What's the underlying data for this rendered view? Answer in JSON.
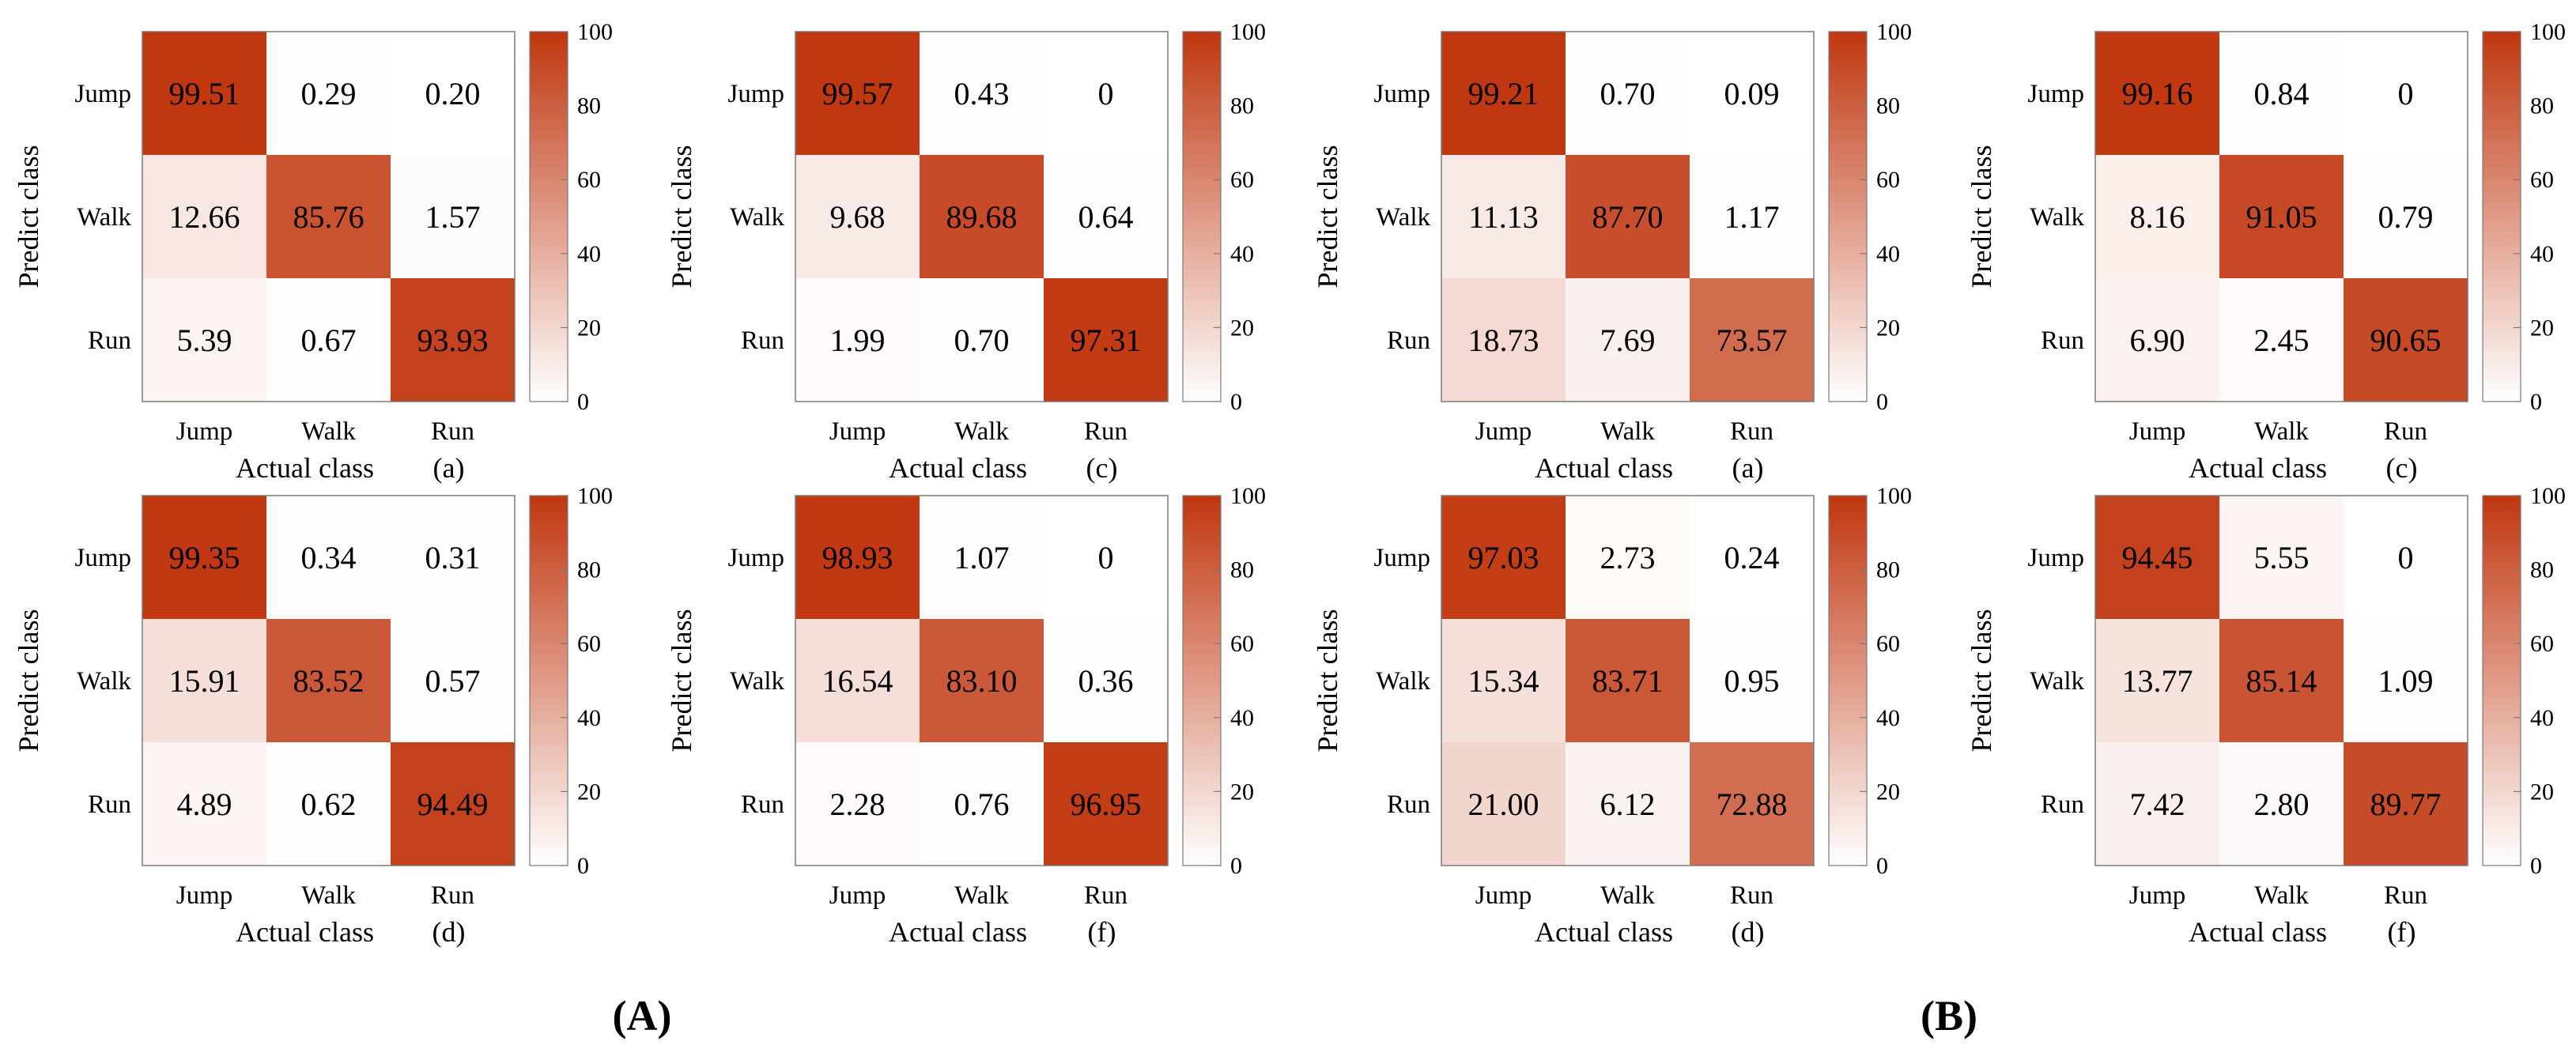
{
  "chart_data": [
    {
      "type": "heatmap",
      "group": "A",
      "panel": "(a)",
      "ylabel": "Predict class",
      "xlabel": "Actual class",
      "x_categories": [
        "Jump",
        "Walk",
        "Run"
      ],
      "y_categories": [
        "Jump",
        "Walk",
        "Run"
      ],
      "values": [
        [
          99.51,
          0.29,
          0.2
        ],
        [
          12.66,
          85.76,
          1.57
        ],
        [
          5.39,
          0.67,
          93.93
        ]
      ],
      "labels": [
        [
          "99.51",
          "0.29",
          "0.20"
        ],
        [
          "12.66",
          "85.76",
          "1.57"
        ],
        [
          "5.39",
          "0.67",
          "93.93"
        ]
      ],
      "colorbar": {
        "range": [
          0,
          100
        ],
        "ticks": [
          "0",
          "20",
          "40",
          "60",
          "80",
          "100"
        ]
      }
    },
    {
      "type": "heatmap",
      "group": "A",
      "panel": "(c)",
      "ylabel": "Predict class",
      "xlabel": "Actual class",
      "x_categories": [
        "Jump",
        "Walk",
        "Run"
      ],
      "y_categories": [
        "Jump",
        "Walk",
        "Run"
      ],
      "values": [
        [
          99.57,
          0.43,
          0
        ],
        [
          9.68,
          89.68,
          0.64
        ],
        [
          1.99,
          0.7,
          97.31
        ]
      ],
      "labels": [
        [
          "99.57",
          "0.43",
          "0"
        ],
        [
          "9.68",
          "89.68",
          "0.64"
        ],
        [
          "1.99",
          "0.70",
          "97.31"
        ]
      ],
      "colorbar": {
        "range": [
          0,
          100
        ],
        "ticks": [
          "0",
          "20",
          "40",
          "60",
          "80",
          "100"
        ]
      }
    },
    {
      "type": "heatmap",
      "group": "B",
      "panel": "(a)",
      "ylabel": "Predict class",
      "xlabel": "Actual class",
      "x_categories": [
        "Jump",
        "Walk",
        "Run"
      ],
      "y_categories": [
        "Jump",
        "Walk",
        "Run"
      ],
      "values": [
        [
          99.21,
          0.7,
          0.09
        ],
        [
          11.13,
          87.7,
          1.17
        ],
        [
          18.73,
          7.69,
          73.57
        ]
      ],
      "labels": [
        [
          "99.21",
          "0.70",
          "0.09"
        ],
        [
          "11.13",
          "87.70",
          "1.17"
        ],
        [
          "18.73",
          "7.69",
          "73.57"
        ]
      ],
      "colorbar": {
        "range": [
          0,
          100
        ],
        "ticks": [
          "0",
          "20",
          "40",
          "60",
          "80",
          "100"
        ]
      }
    },
    {
      "type": "heatmap",
      "group": "B",
      "panel": "(c)",
      "ylabel": "Predict class",
      "xlabel": "Actual class",
      "x_categories": [
        "Jump",
        "Walk",
        "Run"
      ],
      "y_categories": [
        "Jump",
        "Walk",
        "Run"
      ],
      "values": [
        [
          99.16,
          0.84,
          0
        ],
        [
          8.16,
          91.05,
          0.79
        ],
        [
          6.9,
          2.45,
          90.65
        ]
      ],
      "labels": [
        [
          "99.16",
          "0.84",
          "0"
        ],
        [
          "8.16",
          "91.05",
          "0.79"
        ],
        [
          "6.90",
          "2.45",
          "90.65"
        ]
      ],
      "colorbar": {
        "range": [
          0,
          100
        ],
        "ticks": [
          "0",
          "20",
          "40",
          "60",
          "80",
          "100"
        ]
      }
    },
    {
      "type": "heatmap",
      "group": "A",
      "panel": "(d)",
      "ylabel": "Predict class",
      "xlabel": "Actual class",
      "x_categories": [
        "Jump",
        "Walk",
        "Run"
      ],
      "y_categories": [
        "Jump",
        "Walk",
        "Run"
      ],
      "values": [
        [
          99.35,
          0.34,
          0.31
        ],
        [
          15.91,
          83.52,
          0.57
        ],
        [
          4.89,
          0.62,
          94.49
        ]
      ],
      "labels": [
        [
          "99.35",
          "0.34",
          "0.31"
        ],
        [
          "15.91",
          "83.52",
          "0.57"
        ],
        [
          "4.89",
          "0.62",
          "94.49"
        ]
      ],
      "colorbar": {
        "range": [
          0,
          100
        ],
        "ticks": [
          "0",
          "20",
          "40",
          "60",
          "80",
          "100"
        ]
      }
    },
    {
      "type": "heatmap",
      "group": "A",
      "panel": "(f)",
      "ylabel": "Predict class",
      "xlabel": "Actual class",
      "x_categories": [
        "Jump",
        "Walk",
        "Run"
      ],
      "y_categories": [
        "Jump",
        "Walk",
        "Run"
      ],
      "values": [
        [
          98.93,
          1.07,
          0
        ],
        [
          16.54,
          83.1,
          0.36
        ],
        [
          2.28,
          0.76,
          96.95
        ]
      ],
      "labels": [
        [
          "98.93",
          "1.07",
          "0"
        ],
        [
          "16.54",
          "83.10",
          "0.36"
        ],
        [
          "2.28",
          "0.76",
          "96.95"
        ]
      ],
      "colorbar": {
        "range": [
          0,
          100
        ],
        "ticks": [
          "0",
          "20",
          "40",
          "60",
          "80",
          "100"
        ]
      }
    },
    {
      "type": "heatmap",
      "group": "B",
      "panel": "(d)",
      "ylabel": "Predict class",
      "xlabel": "Actual class",
      "x_categories": [
        "Jump",
        "Walk",
        "Run"
      ],
      "y_categories": [
        "Jump",
        "Walk",
        "Run"
      ],
      "values": [
        [
          97.03,
          2.73,
          0.24
        ],
        [
          15.34,
          83.71,
          0.95
        ],
        [
          21.0,
          6.12,
          72.88
        ]
      ],
      "labels": [
        [
          "97.03",
          "2.73",
          "0.24"
        ],
        [
          "15.34",
          "83.71",
          "0.95"
        ],
        [
          "21.00",
          "6.12",
          "72.88"
        ]
      ],
      "colorbar": {
        "range": [
          0,
          100
        ],
        "ticks": [
          "0",
          "20",
          "40",
          "60",
          "80",
          "100"
        ]
      }
    },
    {
      "type": "heatmap",
      "group": "B",
      "panel": "(f)",
      "ylabel": "Predict class",
      "xlabel": "Actual class",
      "x_categories": [
        "Jump",
        "Walk",
        "Run"
      ],
      "y_categories": [
        "Jump",
        "Walk",
        "Run"
      ],
      "values": [
        [
          94.45,
          5.55,
          0
        ],
        [
          13.77,
          85.14,
          1.09
        ],
        [
          7.42,
          2.8,
          89.77
        ]
      ],
      "labels": [
        [
          "94.45",
          "5.55",
          "0"
        ],
        [
          "13.77",
          "85.14",
          "1.09"
        ],
        [
          "7.42",
          "2.80",
          "89.77"
        ]
      ],
      "colorbar": {
        "range": [
          0,
          100
        ],
        "ticks": [
          "0",
          "20",
          "40",
          "60",
          "80",
          "100"
        ]
      }
    }
  ],
  "group_labels": [
    "(A)",
    "(B)"
  ],
  "colors": {
    "high": "#c0360f",
    "low": "#ffffff",
    "border": "#7a7a7a",
    "text": "#000000"
  }
}
